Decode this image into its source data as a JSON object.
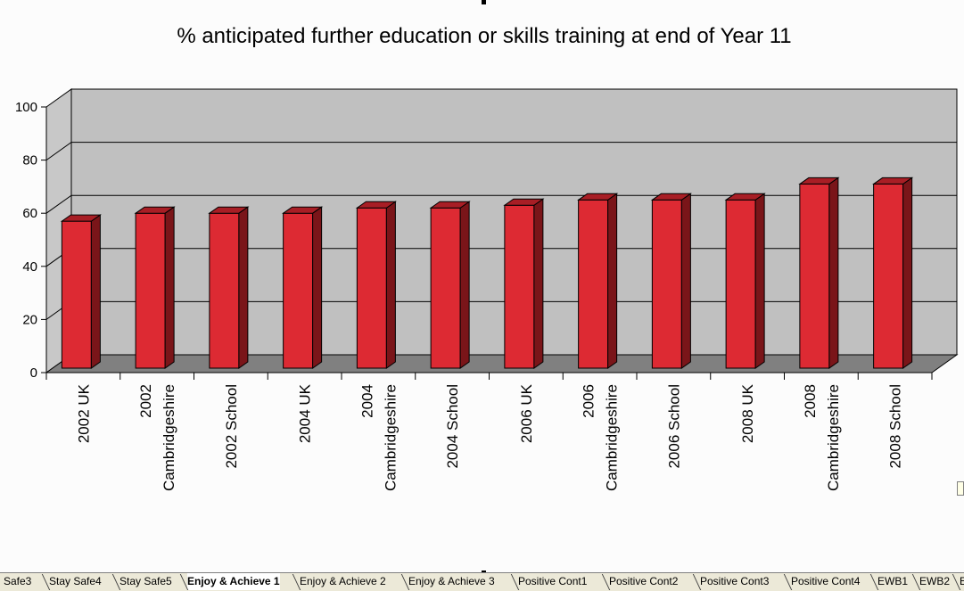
{
  "chart_data": {
    "type": "bar",
    "title": "% anticipated further education or skills training at end of Year 11",
    "categories": [
      [
        "2002 UK"
      ],
      [
        "2002",
        "Cambridgeshire"
      ],
      [
        "2002 School"
      ],
      [
        "2004 UK"
      ],
      [
        "2004",
        "Cambridgeshire"
      ],
      [
        "2004 School"
      ],
      [
        "2006 UK"
      ],
      [
        "2006",
        "Cambridgeshire"
      ],
      [
        "2006 School"
      ],
      [
        "2008 UK"
      ],
      [
        "2008",
        "Cambridgeshire"
      ],
      [
        "2008 School"
      ]
    ],
    "values": [
      57,
      60,
      60,
      60,
      62,
      62,
      63,
      65,
      65,
      65,
      71,
      71
    ],
    "ylim": [
      0,
      100
    ],
    "yticks": [
      "0",
      "20",
      "40",
      "60",
      "80",
      "100"
    ],
    "xlabel": "",
    "ylabel": "",
    "grid": true,
    "legend": "none",
    "colors": {
      "bar_front": "#dd2a33",
      "bar_side": "#7a1519",
      "bar_top": "#a81e25",
      "wall": "#c0c0c0",
      "wall_side": "#c8c8c8",
      "floor": "#808080"
    }
  },
  "sheet_tabs": [
    "Safe3",
    "Stay Safe4",
    "Stay Safe5",
    "Enjoy & Achieve 1",
    "Enjoy & Achieve 2",
    "Enjoy & Achieve 3",
    "Positive Cont1",
    "Positive Cont2",
    "Positive Cont3",
    "Positive Cont4",
    "EWB1",
    "EWB2",
    "E"
  ],
  "active_tab": "Enjoy & Achieve 1"
}
